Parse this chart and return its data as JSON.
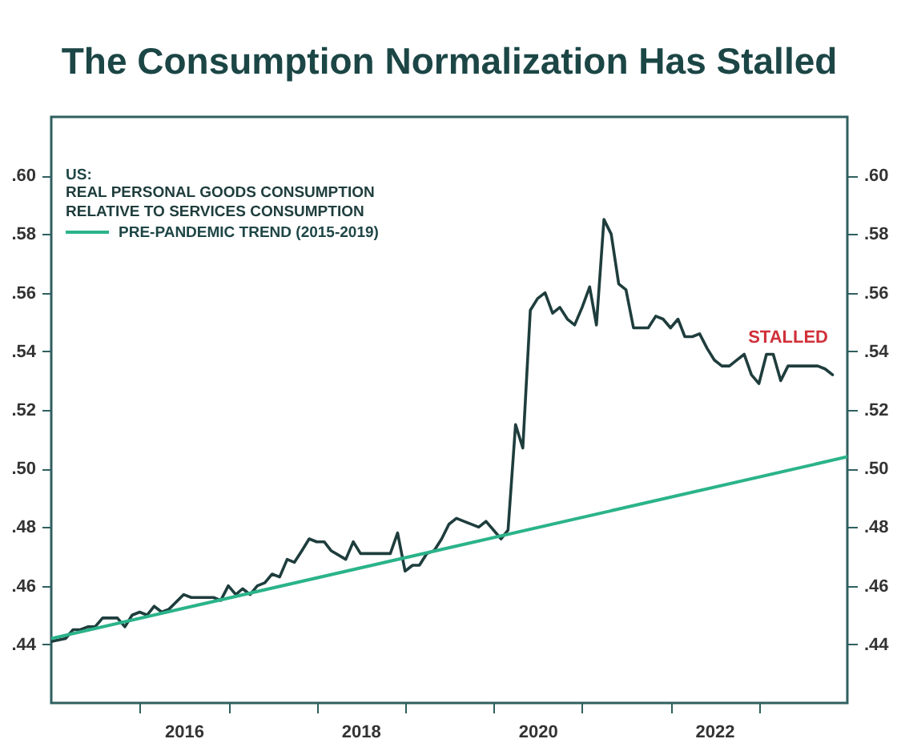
{
  "chart_data": {
    "type": "line",
    "title": "The Consumption Normalization Has Stalled",
    "legend_title": "US:",
    "legend": "top left",
    "series": [
      {
        "name": "REAL PERSONAL GOODS CONSUMPTION RELATIVE TO SERVICES CONSUMPTION",
        "color": "#1f3d3d",
        "x": [
          "2015-01",
          "2015-03",
          "2015-04",
          "2015-05",
          "2015-06",
          "2015-07",
          "2015-08",
          "2015-09",
          "2015-10",
          "2015-11",
          "2015-12",
          "2016-01",
          "2016-02",
          "2016-03",
          "2016-04",
          "2016-05",
          "2016-07",
          "2016-08",
          "2016-09",
          "2016-11",
          "2016-12",
          "2017-01",
          "2017-02",
          "2017-03",
          "2017-04",
          "2017-05",
          "2017-06",
          "2017-07",
          "2017-08",
          "2017-09",
          "2017-10",
          "2017-11",
          "2017-12",
          "2018-01",
          "2018-02",
          "2018-03",
          "2018-05",
          "2018-06",
          "2018-07",
          "2018-08",
          "2018-09",
          "2018-11",
          "2018-12",
          "2019-01",
          "2019-02",
          "2019-03",
          "2019-04",
          "2019-05",
          "2019-06",
          "2019-07",
          "2019-08",
          "2019-09",
          "2019-11",
          "2019-12",
          "2020-02",
          "2020-03",
          "2020-04",
          "2020-05",
          "2020-06",
          "2020-07",
          "2020-08",
          "2020-09",
          "2020-10",
          "2020-11",
          "2020-12",
          "2021-01",
          "2021-02",
          "2021-03",
          "2021-04",
          "2021-05",
          "2021-06",
          "2021-07",
          "2021-08",
          "2021-09",
          "2021-10",
          "2021-11",
          "2021-12",
          "2022-01",
          "2022-02",
          "2022-03",
          "2022-04",
          "2022-05",
          "2022-06",
          "2022-07",
          "2022-08",
          "2022-09",
          "2022-10",
          "2022-11",
          "2022-12",
          "2023-01",
          "2023-02",
          "2023-03",
          "2023-04",
          "2023-05",
          "2023-06",
          "2023-07",
          "2023-08",
          "2023-09",
          "2023-10",
          "2023-11"
        ],
        "values": [
          0.441,
          0.442,
          0.445,
          0.445,
          0.446,
          0.446,
          0.449,
          0.449,
          0.449,
          0.446,
          0.45,
          0.451,
          0.45,
          0.453,
          0.451,
          0.452,
          0.457,
          0.456,
          0.456,
          0.456,
          0.455,
          0.46,
          0.457,
          0.459,
          0.457,
          0.46,
          0.461,
          0.464,
          0.463,
          0.469,
          0.468,
          0.472,
          0.476,
          0.475,
          0.475,
          0.472,
          0.469,
          0.475,
          0.471,
          0.471,
          0.471,
          0.471,
          0.478,
          0.465,
          0.467,
          0.467,
          0.471,
          0.472,
          0.476,
          0.481,
          0.483,
          0.482,
          0.48,
          0.482,
          0.476,
          0.479,
          0.515,
          0.507,
          0.554,
          0.558,
          0.56,
          0.553,
          0.555,
          0.551,
          0.549,
          0.555,
          0.562,
          0.549,
          0.585,
          0.58,
          0.563,
          0.561,
          0.548,
          0.548,
          0.548,
          0.552,
          0.551,
          0.548,
          0.551,
          0.545,
          0.545,
          0.546,
          0.541,
          0.537,
          0.535,
          0.535,
          0.537,
          0.539,
          0.532,
          0.529,
          0.539,
          0.539,
          0.53,
          0.535,
          0.535,
          0.535,
          0.535,
          0.535,
          0.534,
          0.532
        ]
      },
      {
        "name": "PRE-PANDEMIC TREND (2015-2019)",
        "color": "#2bb38a",
        "type": "line",
        "x": [
          "2015-01",
          "2024-01"
        ],
        "values": [
          0.442,
          0.504
        ]
      }
    ],
    "xlim": [
      "2015-01",
      "2024-01"
    ],
    "xticks": [
      {
        "value": "2016-01",
        "label": null
      },
      {
        "value": "2016-07",
        "label": "2016"
      },
      {
        "value": "2017-01",
        "label": null
      },
      {
        "value": "2018-01",
        "label": null
      },
      {
        "value": "2018-07",
        "label": "2018"
      },
      {
        "value": "2019-01",
        "label": null
      },
      {
        "value": "2020-01",
        "label": null
      },
      {
        "value": "2020-07",
        "label": "2020"
      },
      {
        "value": "2021-01",
        "label": null
      },
      {
        "value": "2022-01",
        "label": null
      },
      {
        "value": "2022-07",
        "label": "2022"
      },
      {
        "value": "2023-01",
        "label": null
      }
    ],
    "ylim": [
      0.42,
      0.62
    ],
    "yticks": [
      {
        "value": 0.44,
        "label": ".44"
      },
      {
        "value": 0.46,
        "label": ".46"
      },
      {
        "value": 0.48,
        "label": ".48"
      },
      {
        "value": 0.5,
        "label": ".50"
      },
      {
        "value": 0.52,
        "label": ".52"
      },
      {
        "value": 0.54,
        "label": ".54"
      },
      {
        "value": 0.56,
        "label": ".56"
      },
      {
        "value": 0.58,
        "label": ".58"
      },
      {
        "value": 0.6,
        "label": ".60"
      }
    ],
    "y2lim": [
      0.42,
      0.62
    ],
    "y2ticks": [
      {
        "value": 0.44,
        "label": ".44"
      },
      {
        "value": 0.46,
        "label": ".46"
      },
      {
        "value": 0.48,
        "label": ".48"
      },
      {
        "value": 0.5,
        "label": ".50"
      },
      {
        "value": 0.52,
        "label": ".52"
      },
      {
        "value": 0.54,
        "label": ".54"
      },
      {
        "value": 0.56,
        "label": ".56"
      },
      {
        "value": 0.58,
        "label": ".58"
      },
      {
        "value": 0.6,
        "label": ".60"
      }
    ],
    "annotations": [
      "STALLED"
    ]
  }
}
